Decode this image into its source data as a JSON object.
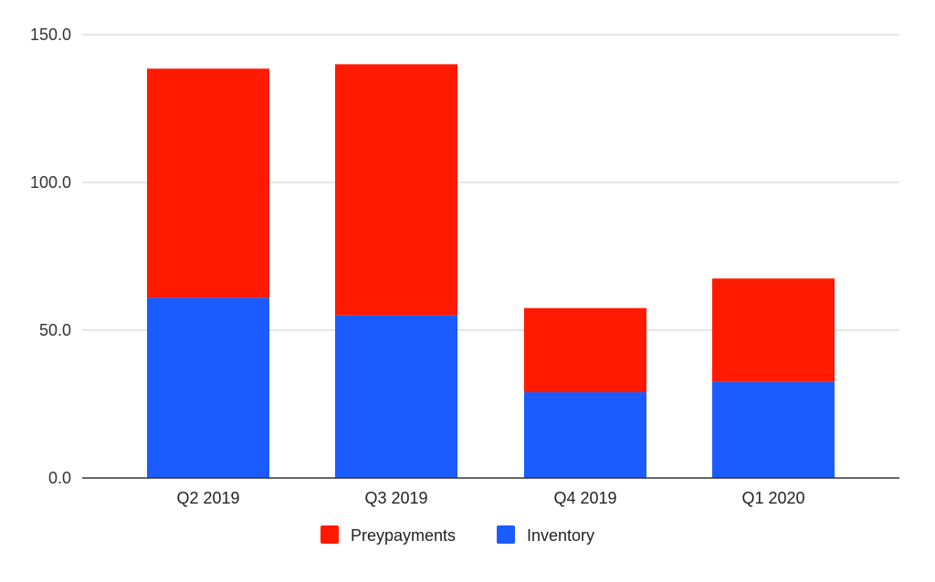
{
  "chart_data": {
    "type": "bar",
    "stacked": true,
    "categories": [
      "Q2 2019",
      "Q3 2019",
      "Q4 2019",
      "Q1 2020"
    ],
    "series": [
      {
        "name": "Inventory",
        "color": "#1a5cff",
        "values": [
          61.0,
          55.0,
          29.0,
          32.5
        ]
      },
      {
        "name": "Preypayments",
        "color": "#ff1a00",
        "values": [
          77.5,
          85.0,
          28.5,
          35.0
        ]
      }
    ],
    "ylim": [
      0,
      150
    ],
    "yticks": [
      "0.0",
      "50.0",
      "100.0",
      "150.0"
    ],
    "grid": true,
    "legend": {
      "position": "bottom",
      "items": [
        {
          "name": "Preypayments",
          "color": "#ff1a00"
        },
        {
          "name": "Inventory",
          "color": "#1a5cff"
        }
      ]
    }
  }
}
